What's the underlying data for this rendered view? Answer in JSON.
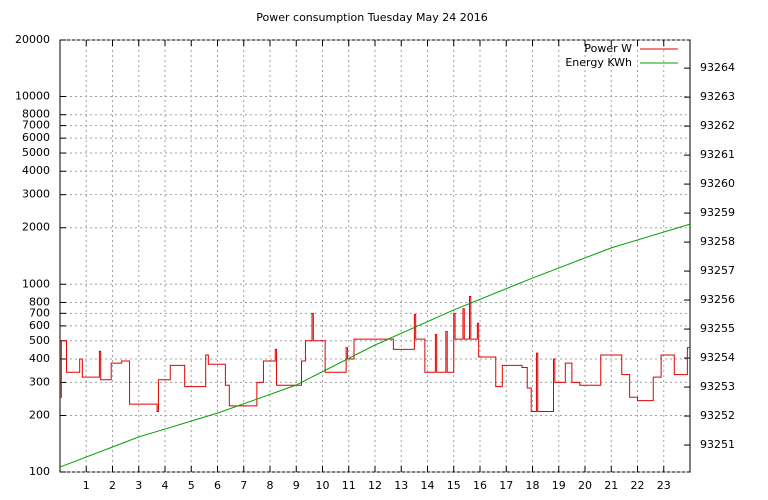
{
  "chart_data": {
    "type": "line",
    "title": "Power consumption Tuesday May 24 2016",
    "xlim": [
      0,
      24
    ],
    "xticks": [
      1,
      2,
      3,
      4,
      5,
      6,
      7,
      8,
      9,
      10,
      11,
      12,
      13,
      14,
      15,
      16,
      17,
      18,
      19,
      20,
      21,
      22,
      23
    ],
    "ylim": [
      100,
      20000
    ],
    "yscale": "log",
    "yticks": [
      100,
      200,
      300,
      400,
      500,
      600,
      700,
      800,
      1000,
      2000,
      3000,
      4000,
      5000,
      6000,
      7000,
      8000,
      10000,
      20000
    ],
    "y2lim": [
      93250.07,
      93264.97
    ],
    "y2ticks": [
      93251,
      93252,
      93253,
      93254,
      93255,
      93256,
      93257,
      93258,
      93259,
      93260,
      93261,
      93262,
      93263,
      93264
    ],
    "grid": true,
    "legend": "top-right",
    "series": [
      {
        "name": "Power W",
        "color": "#e00000",
        "x": [
          0,
          0.05,
          0.05,
          0.25,
          0.25,
          0.75,
          0.75,
          0.85,
          0.85,
          1.5,
          1.5,
          1.55,
          1.55,
          1.95,
          1.95,
          2.35,
          2.35,
          2.65,
          2.65,
          3.7,
          3.7,
          3.75,
          3.75,
          4.2,
          4.2,
          4.75,
          4.75,
          5.55,
          5.55,
          5.65,
          5.65,
          6.3,
          6.3,
          6.45,
          6.45,
          7.5,
          7.5,
          7.75,
          7.75,
          8.2,
          8.2,
          8.25,
          8.25,
          9.2,
          9.2,
          9.35,
          9.35,
          9.6,
          9.6,
          9.65,
          9.65,
          10.1,
          10.1,
          10.9,
          10.9,
          10.95,
          10.95,
          11.2,
          11.2,
          12.7,
          12.7,
          13.5,
          13.5,
          13.55,
          13.55,
          13.9,
          13.9,
          14.3,
          14.3,
          14.35,
          14.35,
          14.7,
          14.7,
          14.75,
          14.75,
          15.0,
          15.0,
          15.05,
          15.05,
          15.35,
          15.35,
          15.4,
          15.4,
          15.6,
          15.6,
          15.65,
          15.65,
          15.9,
          15.9,
          15.95,
          15.95,
          16.6,
          16.6,
          16.85,
          16.85,
          17.6,
          17.6,
          17.8,
          17.8,
          17.95,
          17.95,
          18.15,
          18.15,
          18.2,
          18.2,
          18.8,
          18.8,
          18.85,
          18.85,
          19.25,
          19.25,
          19.5,
          19.5,
          19.8,
          19.8,
          20.6,
          20.6,
          21.4,
          21.4,
          21.7,
          21.7,
          22.0,
          22.0,
          22.6,
          22.6,
          22.9,
          22.9,
          23.4,
          23.4,
          23.9,
          23.9,
          24
        ],
        "values": [
          250,
          250,
          500,
          500,
          340,
          340,
          400,
          400,
          320,
          320,
          440,
          440,
          310,
          310,
          380,
          380,
          390,
          390,
          230,
          230,
          210,
          210,
          310,
          310,
          370,
          370,
          285,
          285,
          420,
          420,
          375,
          375,
          290,
          290,
          225,
          225,
          300,
          300,
          390,
          390,
          450,
          450,
          290,
          290,
          390,
          390,
          500,
          500,
          700,
          700,
          500,
          500,
          340,
          340,
          460,
          460,
          400,
          400,
          510,
          510,
          450,
          450,
          690,
          690,
          510,
          510,
          340,
          340,
          540,
          540,
          340,
          340,
          560,
          560,
          340,
          340,
          700,
          700,
          510,
          510,
          740,
          740,
          510,
          510,
          860,
          860,
          510,
          510,
          620,
          620,
          410,
          410,
          285,
          285,
          370,
          370,
          360,
          360,
          280,
          280,
          210,
          210,
          430,
          430,
          210,
          210,
          400,
          400,
          300,
          300,
          380,
          380,
          300,
          300,
          290,
          290,
          420,
          420,
          330,
          330,
          250,
          250,
          240,
          240,
          320,
          320,
          420,
          420,
          330,
          330,
          460,
          460
        ]
      },
      {
        "name": "Energy KWh",
        "color": "#00a000",
        "axis": "y2",
        "x": [
          0,
          3,
          6,
          9,
          12,
          15,
          18,
          21,
          24
        ],
        "values": [
          93250.24,
          93251.28,
          93252.1,
          93253.07,
          93254.45,
          93255.66,
          93256.76,
          93257.8,
          93258.62
        ]
      }
    ]
  }
}
